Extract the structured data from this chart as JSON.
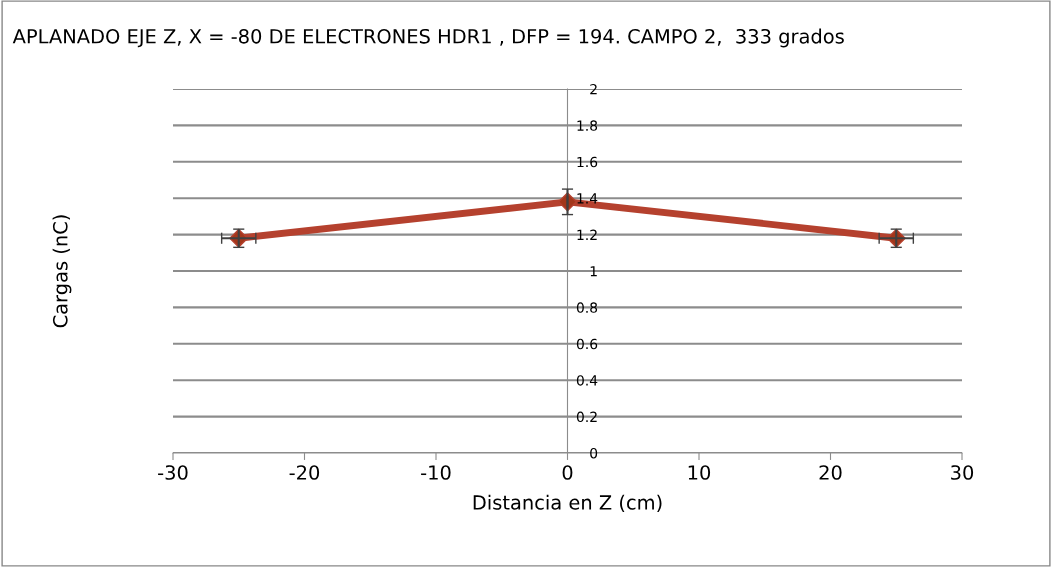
{
  "chart_data": {
    "type": "line",
    "title": "APLANADO EJE Z, X = -80 DE ELECTRONES HDR1 , DFP = 194. CAMPO 2,  333 grados",
    "xlabel": "Distancia en Z (cm)",
    "ylabel": "Cargas (nC)",
    "x": [
      -25,
      0,
      25
    ],
    "series": [
      {
        "color": "#b5412e",
        "values": [
          1.18,
          1.38,
          1.18
        ],
        "errors": [
          0.05,
          0.07,
          0.05
        ],
        "xerrors": [
          1.3,
          null,
          1.3
        ]
      }
    ],
    "xlim": [
      -30,
      30
    ],
    "xticks": [
      -30,
      -20,
      -10,
      0,
      10,
      20,
      30
    ],
    "ylim": [
      0,
      2
    ],
    "yticks": [
      0,
      0.2,
      0.4,
      0.6,
      0.8,
      1,
      1.2,
      1.4,
      1.6,
      1.8,
      2
    ],
    "grid": "y",
    "marker": "diamond",
    "line_style": "solid",
    "legend": false
  }
}
